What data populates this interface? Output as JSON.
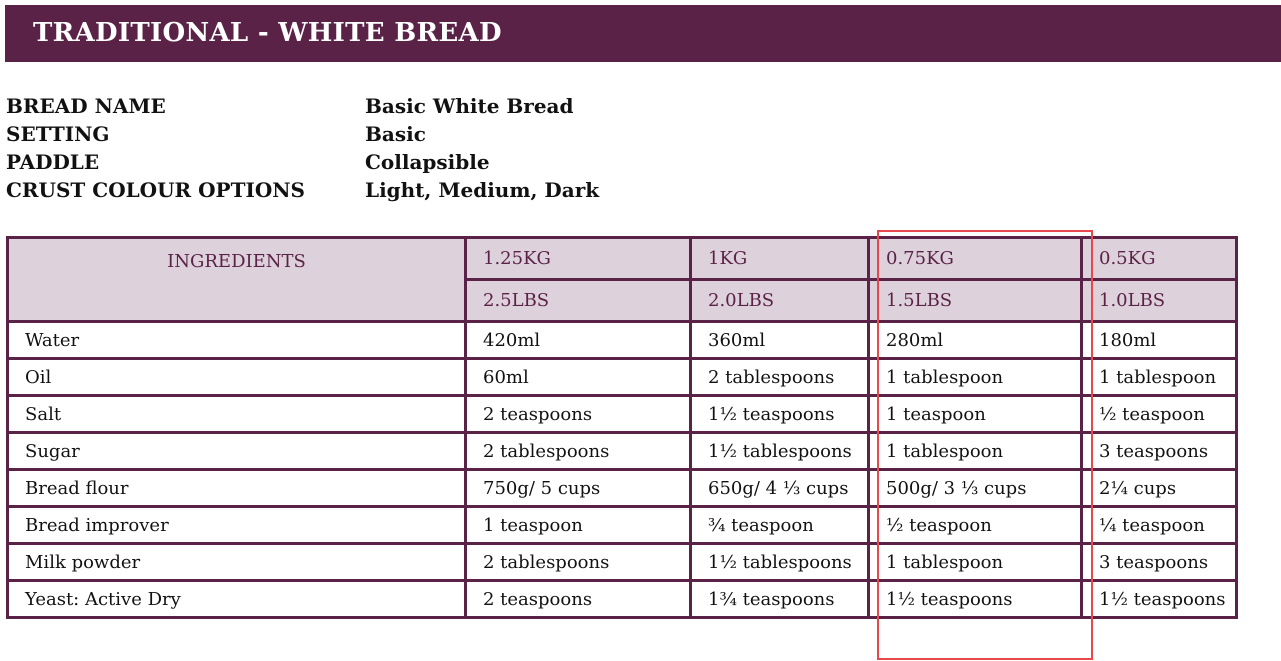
{
  "banner": {
    "title": "TRADITIONAL - WHITE BREAD",
    "color": "#5b2248"
  },
  "info": [
    {
      "key": "BREAD NAME",
      "value": "Basic White Bread"
    },
    {
      "key": "SETTING",
      "value": "Basic"
    },
    {
      "key": "PADDLE",
      "value": "Collapsible"
    },
    {
      "key": "CRUST COLOUR OPTIONS",
      "value": "Light, Medium, Dark"
    }
  ],
  "table": {
    "ingredients_header": "INGREDIENTS",
    "sizes": [
      {
        "kg": "1.25KG",
        "lbs": "2.5LBS"
      },
      {
        "kg": "1KG",
        "lbs": "2.0LBS"
      },
      {
        "kg": "0.75KG",
        "lbs": "1.5LBS"
      },
      {
        "kg": "0.5KG",
        "lbs": "1.0LBS"
      }
    ],
    "rows": [
      {
        "name": "Water",
        "values": [
          "420ml",
          "360ml",
          "280ml",
          "180ml"
        ]
      },
      {
        "name": "Oil",
        "values": [
          "60ml",
          "2 tablespoons",
          "1 tablespoon",
          "1 tablespoon"
        ]
      },
      {
        "name": "Salt",
        "values": [
          "2 teaspoons",
          "1½ teaspoons",
          "1 teaspoon",
          "½ teaspoon"
        ]
      },
      {
        "name": "Sugar",
        "values": [
          "2 tablespoons",
          "1½ tablespoons",
          "1 tablespoon",
          "3 teaspoons"
        ]
      },
      {
        "name": "Bread flour",
        "values": [
          "750g/ 5 cups",
          "650g/ 4 ⅓ cups",
          "500g/ 3 ⅓ cups",
          "2¼ cups"
        ]
      },
      {
        "name": "Bread improver",
        "values": [
          "1 teaspoon",
          "¾ teaspoon",
          "½ teaspoon",
          "¼ teaspoon"
        ]
      },
      {
        "name": "Milk powder",
        "values": [
          "2 tablespoons",
          "1½ tablespoons",
          "1 tablespoon",
          "3 teaspoons"
        ]
      },
      {
        "name": "Yeast: Active Dry",
        "values": [
          "2 teaspoons",
          "1¾ teaspoons",
          "1½ teaspoons",
          "1½ teaspoons"
        ]
      }
    ],
    "highlighted_column": 2,
    "header_bg": "#ddd1db",
    "highlight_color": "#e8474c"
  }
}
